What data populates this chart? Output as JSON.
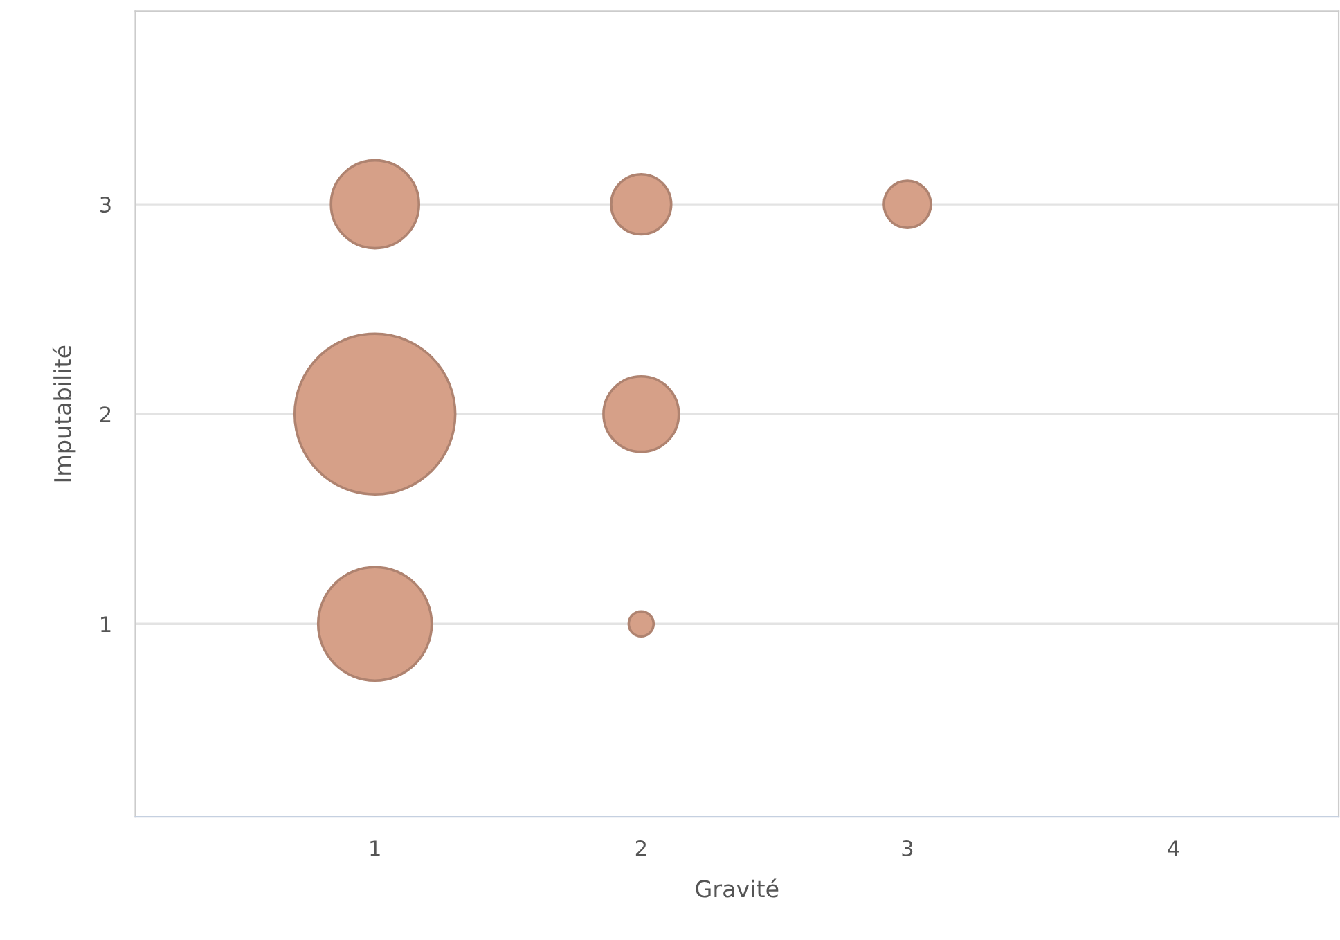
{
  "chart_data": {
    "type": "bubble",
    "xlabel": "Gravité",
    "ylabel": "Imputabilité",
    "series": [
      {
        "color": "#d6a088",
        "x": [
          1,
          2,
          3,
          1,
          2,
          1,
          2
        ],
        "values": [
          3,
          3,
          3,
          2,
          2,
          1,
          1
        ],
        "sizes": [
          0.3,
          0.14,
          0.086,
          1,
          0.22,
          0.5,
          0.024
        ]
      }
    ],
    "xlim": [
      0.1,
      4.62
    ],
    "ylim": [
      0.08,
      3.92
    ],
    "xticks": [
      1,
      2,
      3,
      4
    ],
    "yticks": [
      1,
      2,
      3
    ],
    "grid": "y",
    "legend": false
  }
}
